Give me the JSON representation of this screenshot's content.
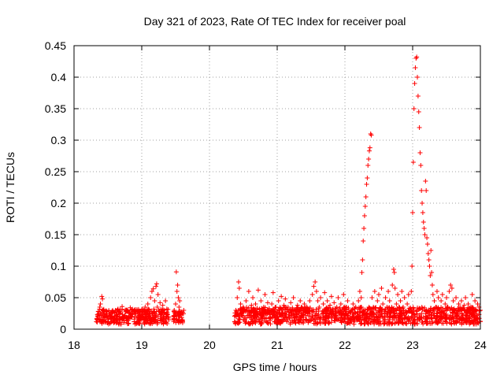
{
  "chart_data": {
    "type": "scatter",
    "title": "Day 321 of 2023, Rate Of TEC Index for receiver poal",
    "xlabel": "GPS time / hours",
    "ylabel": "ROTI / TECUs",
    "xlim": [
      18,
      24
    ],
    "ylim": [
      0,
      0.45
    ],
    "grid": true,
    "marker": "+",
    "x_ticks": [
      18,
      19,
      20,
      21,
      22,
      23,
      24
    ],
    "x_tick_labels": [
      "18",
      "19",
      "20",
      "21",
      "22",
      "23",
      "24"
    ],
    "y_ticks": [
      0,
      0.05,
      0.1,
      0.15,
      0.2,
      0.25,
      0.3,
      0.35,
      0.4,
      0.45
    ],
    "y_tick_labels": [
      "0",
      "0.05",
      "0.1",
      "0.15",
      "0.2",
      "0.25",
      "0.3",
      "0.35",
      "0.4",
      "0.45"
    ],
    "series": [
      {
        "name": "ROTI",
        "color": "#ff0000",
        "points": [
          [
            18.33,
            0.012
          ],
          [
            18.35,
            0.02
          ],
          [
            18.36,
            0.028
          ],
          [
            18.37,
            0.015
          ],
          [
            18.38,
            0.035
          ],
          [
            18.39,
            0.04
          ],
          [
            18.4,
            0.022
          ],
          [
            18.41,
            0.052
          ],
          [
            18.42,
            0.048
          ],
          [
            18.43,
            0.03
          ],
          [
            18.44,
            0.018
          ],
          [
            18.45,
            0.025
          ],
          [
            18.47,
            0.013
          ],
          [
            18.49,
            0.02
          ],
          [
            18.51,
            0.016
          ],
          [
            18.53,
            0.024
          ],
          [
            18.55,
            0.012
          ],
          [
            18.57,
            0.028
          ],
          [
            18.59,
            0.018
          ],
          [
            18.61,
            0.03
          ],
          [
            18.63,
            0.015
          ],
          [
            18.65,
            0.032
          ],
          [
            18.67,
            0.02
          ],
          [
            18.69,
            0.026
          ],
          [
            18.71,
            0.036
          ],
          [
            18.73,
            0.017
          ],
          [
            18.75,
            0.022
          ],
          [
            18.77,
            0.03
          ],
          [
            18.79,
            0.014
          ],
          [
            18.81,
            0.025
          ],
          [
            18.83,
            0.034
          ],
          [
            18.85,
            0.02
          ],
          [
            18.87,
            0.028
          ],
          [
            18.89,
            0.016
          ],
          [
            18.91,
            0.024
          ],
          [
            18.93,
            0.031
          ],
          [
            18.95,
            0.019
          ],
          [
            18.97,
            0.027
          ],
          [
            18.99,
            0.022
          ],
          [
            19.01,
            0.03
          ],
          [
            19.03,
            0.018
          ],
          [
            19.05,
            0.035
          ],
          [
            19.07,
            0.025
          ],
          [
            19.09,
            0.04
          ],
          [
            19.11,
            0.028
          ],
          [
            19.13,
            0.05
          ],
          [
            19.15,
            0.06
          ],
          [
            19.17,
            0.064
          ],
          [
            19.19,
            0.045
          ],
          [
            19.21,
            0.068
          ],
          [
            19.22,
            0.072
          ],
          [
            19.23,
            0.035
          ],
          [
            19.24,
            0.055
          ],
          [
            19.25,
            0.03
          ],
          [
            19.27,
            0.042
          ],
          [
            19.29,
            0.025
          ],
          [
            19.31,
            0.038
          ],
          [
            19.33,
            0.02
          ],
          [
            19.35,
            0.045
          ],
          [
            19.37,
            0.032
          ],
          [
            19.4,
            0.015
          ],
          [
            19.47,
            0.02
          ],
          [
            19.48,
            0.03
          ],
          [
            19.5,
            0.04
          ],
          [
            19.51,
            0.091
          ],
          [
            19.52,
            0.06
          ],
          [
            19.53,
            0.07
          ],
          [
            19.54,
            0.05
          ],
          [
            19.55,
            0.035
          ],
          [
            19.56,
            0.045
          ],
          [
            19.58,
            0.025
          ],
          [
            19.6,
            0.015
          ],
          [
            19.62,
            0.03
          ],
          [
            20.37,
            0.012
          ],
          [
            20.39,
            0.03
          ],
          [
            20.41,
            0.05
          ],
          [
            20.43,
            0.075
          ],
          [
            20.44,
            0.065
          ],
          [
            20.46,
            0.04
          ],
          [
            20.48,
            0.025
          ],
          [
            20.5,
            0.035
          ],
          [
            20.52,
            0.018
          ],
          [
            20.54,
            0.045
          ],
          [
            20.56,
            0.03
          ],
          [
            20.58,
            0.06
          ],
          [
            20.6,
            0.022
          ],
          [
            20.62,
            0.038
          ],
          [
            20.64,
            0.05
          ],
          [
            20.66,
            0.028
          ],
          [
            20.68,
            0.04
          ],
          [
            20.7,
            0.015
          ],
          [
            20.72,
            0.062
          ],
          [
            20.74,
            0.032
          ],
          [
            20.76,
            0.045
          ],
          [
            20.78,
            0.02
          ],
          [
            20.8,
            0.035
          ],
          [
            20.82,
            0.055
          ],
          [
            20.84,
            0.025
          ],
          [
            20.86,
            0.042
          ],
          [
            20.88,
            0.03
          ],
          [
            20.9,
            0.018
          ],
          [
            20.92,
            0.04
          ],
          [
            20.94,
            0.058
          ],
          [
            20.96,
            0.026
          ],
          [
            20.98,
            0.035
          ],
          [
            21.0,
            0.02
          ],
          [
            21.02,
            0.045
          ],
          [
            21.04,
            0.03
          ],
          [
            21.06,
            0.052
          ],
          [
            21.08,
            0.022
          ],
          [
            21.1,
            0.038
          ],
          [
            21.12,
            0.048
          ],
          [
            21.14,
            0.028
          ],
          [
            21.16,
            0.035
          ],
          [
            21.18,
            0.018
          ],
          [
            21.2,
            0.042
          ],
          [
            21.22,
            0.025
          ],
          [
            21.24,
            0.05
          ],
          [
            21.26,
            0.03
          ],
          [
            21.28,
            0.02
          ],
          [
            21.3,
            0.038
          ],
          [
            21.32,
            0.026
          ],
          [
            21.34,
            0.045
          ],
          [
            21.36,
            0.018
          ],
          [
            21.38,
            0.032
          ],
          [
            21.4,
            0.04
          ],
          [
            21.42,
            0.022
          ],
          [
            21.44,
            0.035
          ],
          [
            21.46,
            0.028
          ],
          [
            21.48,
            0.045
          ],
          [
            21.5,
            0.02
          ],
          [
            21.52,
            0.055
          ],
          [
            21.54,
            0.068
          ],
          [
            21.56,
            0.075
          ],
          [
            21.58,
            0.06
          ],
          [
            21.6,
            0.045
          ],
          [
            21.62,
            0.035
          ],
          [
            21.64,
            0.05
          ],
          [
            21.66,
            0.025
          ],
          [
            21.68,
            0.04
          ],
          [
            21.7,
            0.058
          ],
          [
            21.72,
            0.03
          ],
          [
            21.74,
            0.045
          ],
          [
            21.76,
            0.02
          ],
          [
            21.78,
            0.038
          ],
          [
            21.8,
            0.052
          ],
          [
            21.82,
            0.028
          ],
          [
            21.84,
            0.042
          ],
          [
            21.86,
            0.018
          ],
          [
            21.88,
            0.035
          ],
          [
            21.9,
            0.05
          ],
          [
            21.92,
            0.025
          ],
          [
            21.94,
            0.04
          ],
          [
            21.96,
            0.03
          ],
          [
            21.98,
            0.055
          ],
          [
            22.0,
            0.022
          ],
          [
            22.02,
            0.035
          ],
          [
            22.04,
            0.045
          ],
          [
            22.06,
            0.028
          ],
          [
            22.08,
            0.018
          ],
          [
            22.1,
            0.03
          ],
          [
            22.12,
            0.04
          ],
          [
            22.14,
            0.025
          ],
          [
            22.16,
            0.035
          ],
          [
            22.18,
            0.02
          ],
          [
            22.2,
            0.045
          ],
          [
            22.22,
            0.06
          ],
          [
            22.24,
            0.05
          ],
          [
            22.25,
            0.09
          ],
          [
            22.26,
            0.11
          ],
          [
            22.27,
            0.14
          ],
          [
            22.28,
            0.16
          ],
          [
            22.29,
            0.18
          ],
          [
            22.3,
            0.195
          ],
          [
            22.31,
            0.21
          ],
          [
            22.32,
            0.23
          ],
          [
            22.33,
            0.24
          ],
          [
            22.34,
            0.26
          ],
          [
            22.35,
            0.27
          ],
          [
            22.36,
            0.283
          ],
          [
            22.37,
            0.288
          ],
          [
            22.38,
            0.31
          ],
          [
            22.39,
            0.308
          ],
          [
            22.4,
            0.05
          ],
          [
            22.42,
            0.035
          ],
          [
            22.44,
            0.06
          ],
          [
            22.46,
            0.03
          ],
          [
            22.48,
            0.045
          ],
          [
            22.5,
            0.055
          ],
          [
            22.52,
            0.025
          ],
          [
            22.54,
            0.065
          ],
          [
            22.56,
            0.04
          ],
          [
            22.58,
            0.03
          ],
          [
            22.6,
            0.05
          ],
          [
            22.62,
            0.035
          ],
          [
            22.64,
            0.06
          ],
          [
            22.66,
            0.045
          ],
          [
            22.68,
            0.025
          ],
          [
            22.7,
            0.07
          ],
          [
            22.72,
            0.095
          ],
          [
            22.73,
            0.09
          ],
          [
            22.74,
            0.065
          ],
          [
            22.76,
            0.04
          ],
          [
            22.78,
            0.055
          ],
          [
            22.8,
            0.03
          ],
          [
            22.82,
            0.045
          ],
          [
            22.84,
            0.06
          ],
          [
            22.86,
            0.035
          ],
          [
            22.88,
            0.05
          ],
          [
            22.9,
            0.025
          ],
          [
            22.92,
            0.04
          ],
          [
            22.94,
            0.055
          ],
          [
            22.96,
            0.03
          ],
          [
            22.98,
            0.06
          ],
          [
            22.99,
            0.1
          ],
          [
            23.0,
            0.185
          ],
          [
            23.01,
            0.265
          ],
          [
            23.02,
            0.35
          ],
          [
            23.03,
            0.39
          ],
          [
            23.04,
            0.415
          ],
          [
            23.05,
            0.43
          ],
          [
            23.06,
            0.432
          ],
          [
            23.07,
            0.4
          ],
          [
            23.08,
            0.37
          ],
          [
            23.09,
            0.345
          ],
          [
            23.1,
            0.32
          ],
          [
            23.11,
            0.28
          ],
          [
            23.12,
            0.26
          ],
          [
            23.13,
            0.22
          ],
          [
            23.14,
            0.2
          ],
          [
            23.15,
            0.185
          ],
          [
            23.16,
            0.17
          ],
          [
            23.17,
            0.16
          ],
          [
            23.18,
            0.15
          ],
          [
            23.19,
            0.235
          ],
          [
            23.2,
            0.22
          ],
          [
            23.21,
            0.145
          ],
          [
            23.22,
            0.135
          ],
          [
            23.23,
            0.12
          ],
          [
            23.24,
            0.11
          ],
          [
            23.25,
            0.1
          ],
          [
            23.26,
            0.085
          ],
          [
            23.27,
            0.125
          ],
          [
            23.28,
            0.09
          ],
          [
            23.29,
            0.07
          ],
          [
            23.3,
            0.055
          ],
          [
            23.32,
            0.045
          ],
          [
            23.34,
            0.035
          ],
          [
            23.36,
            0.06
          ],
          [
            23.38,
            0.05
          ],
          [
            23.4,
            0.03
          ],
          [
            23.42,
            0.045
          ],
          [
            23.44,
            0.055
          ],
          [
            23.46,
            0.025
          ],
          [
            23.48,
            0.04
          ],
          [
            23.5,
            0.05
          ],
          [
            23.52,
            0.035
          ],
          [
            23.54,
            0.06
          ],
          [
            23.56,
            0.07
          ],
          [
            23.58,
            0.065
          ],
          [
            23.6,
            0.045
          ],
          [
            23.62,
            0.03
          ],
          [
            23.64,
            0.05
          ],
          [
            23.66,
            0.025
          ],
          [
            23.68,
            0.04
          ],
          [
            23.7,
            0.035
          ],
          [
            23.72,
            0.045
          ],
          [
            23.74,
            0.022
          ],
          [
            23.76,
            0.038
          ],
          [
            23.78,
            0.05
          ],
          [
            23.8,
            0.03
          ],
          [
            23.82,
            0.04
          ],
          [
            23.84,
            0.025
          ],
          [
            23.86,
            0.035
          ],
          [
            23.88,
            0.055
          ],
          [
            23.9,
            0.03
          ],
          [
            23.92,
            0.045
          ],
          [
            23.94,
            0.025
          ],
          [
            23.96,
            0.04
          ],
          [
            23.98,
            0.035
          ],
          [
            24.0,
            0.03
          ]
        ],
        "dense_bands": [
          {
            "x_start": 18.33,
            "x_end": 19.4,
            "y_low": 0.008,
            "y_high": 0.032
          },
          {
            "x_start": 19.47,
            "x_end": 19.62,
            "y_low": 0.01,
            "y_high": 0.03
          },
          {
            "x_start": 20.37,
            "x_end": 24.0,
            "y_low": 0.008,
            "y_high": 0.035
          }
        ]
      }
    ]
  }
}
